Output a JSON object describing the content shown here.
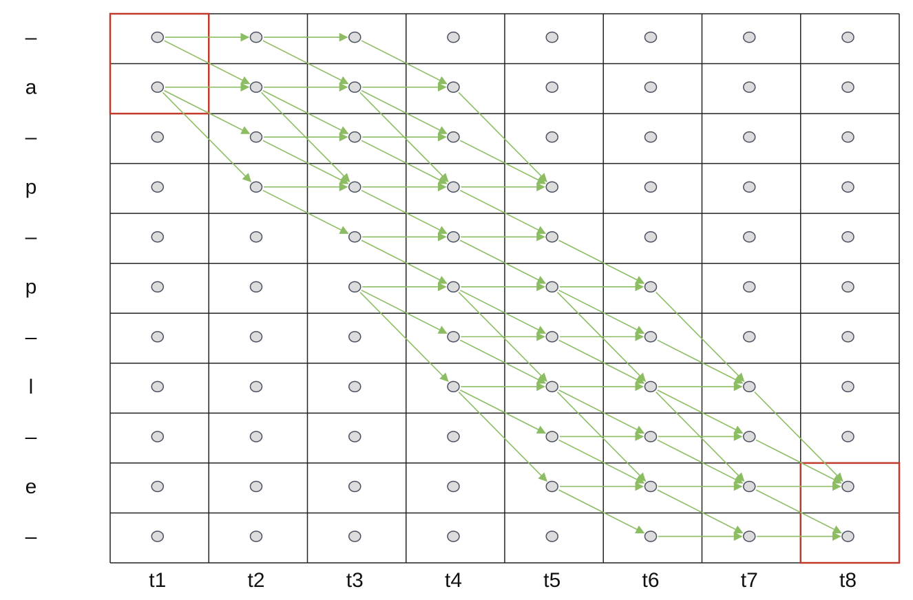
{
  "row_labels": [
    "–",
    "a",
    "–",
    "p",
    "–",
    "p",
    "–",
    "l",
    "–",
    "e",
    "–"
  ],
  "column_labels": [
    "t1",
    "t2",
    "t3",
    "t4",
    "t5",
    "t6",
    "t7",
    "t8"
  ]
}
